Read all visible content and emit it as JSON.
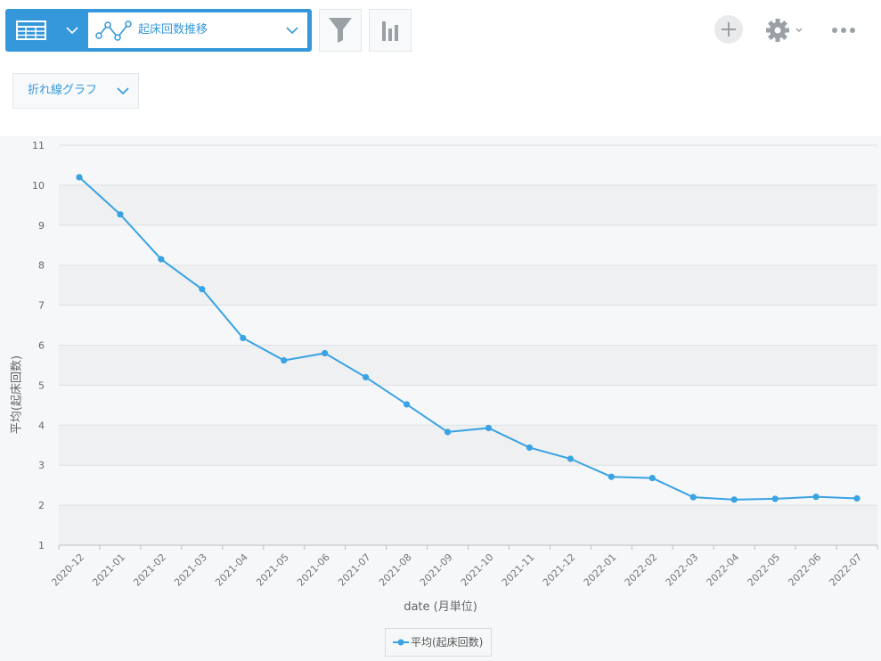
{
  "toolbar": {
    "view_table_icon": "table-icon",
    "graph_selector": {
      "icon": "line-chart-icon",
      "label": "起床回数推移"
    },
    "filter_icon": "filter-icon",
    "aggregate_icon": "bar-chart-icon",
    "add_icon": "plus-icon",
    "settings_icon": "gear-icon",
    "more_icon": "more-icon"
  },
  "chart_type_selector": {
    "label": "折れ線グラフ"
  },
  "colors": {
    "accent": "#3498db",
    "line": "#3aa3e3"
  },
  "chart_data": {
    "type": "line",
    "categories": [
      "2020-12",
      "2021-01",
      "2021-02",
      "2021-03",
      "2021-04",
      "2021-05",
      "2021-06",
      "2021-07",
      "2021-08",
      "2021-09",
      "2021-10",
      "2021-11",
      "2021-12",
      "2022-01",
      "2022-02",
      "2022-03",
      "2022-04",
      "2022-05",
      "2022-06",
      "2022-07"
    ],
    "series": [
      {
        "name": "平均(起床回数)",
        "values": [
          10.2,
          9.27,
          8.15,
          7.4,
          6.18,
          5.62,
          5.8,
          5.2,
          4.52,
          3.83,
          3.93,
          3.44,
          3.16,
          2.71,
          2.68,
          2.2,
          2.14,
          2.16,
          2.21,
          2.17
        ]
      }
    ],
    "yticks": [
      "1",
      "2",
      "3",
      "4",
      "5",
      "6",
      "7",
      "8",
      "9",
      "10",
      "11"
    ],
    "ylim": [
      1,
      11
    ],
    "xlabel": "date (月単位)",
    "ylabel": "平均(起床回数)",
    "grid": true,
    "legend": "bottom-center"
  }
}
